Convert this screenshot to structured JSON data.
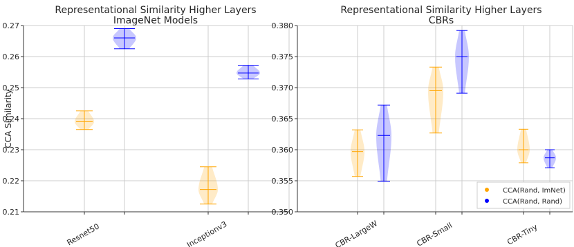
{
  "colors": {
    "rand_imnet": "#ffa500",
    "rand_rand": "#0000ff",
    "grid": "#cccccc",
    "spine": "#333333"
  },
  "chart_data": [
    {
      "type": "violin",
      "title_line1": "Representational Similarity Higher Layers",
      "title_line2": "ImageNet Models",
      "xlabel": "",
      "ylabel": "CCA Similarity",
      "ylim": [
        0.21,
        0.27
      ],
      "yticks": [
        "0.21",
        "0.22",
        "0.23",
        "0.24",
        "0.25",
        "0.26",
        "0.27"
      ],
      "grid": true,
      "categories": [
        "Resnet50",
        "Inceptionv3"
      ],
      "series": [
        {
          "name": "CCA(Rand, ImNet)",
          "color": "#ffa500",
          "values": [
            {
              "min": 0.2365,
              "median": 0.239,
              "max": 0.2425
            },
            {
              "min": 0.2125,
              "median": 0.2172,
              "max": 0.2245
            }
          ]
        },
        {
          "name": "CCA(Rand, Rand)",
          "color": "#0000ff",
          "values": [
            {
              "min": 0.2625,
              "median": 0.266,
              "max": 0.269
            },
            {
              "min": 0.2528,
              "median": 0.2547,
              "max": 0.2572
            }
          ]
        }
      ]
    },
    {
      "type": "violin",
      "title_line1": "Representational Similarity Higher Layers",
      "title_line2": "CBRs",
      "xlabel": "",
      "ylabel": "",
      "ylim": [
        0.35,
        0.38
      ],
      "yticks": [
        "0.350",
        "0.355",
        "0.360",
        "0.365",
        "0.370",
        "0.375",
        "0.380"
      ],
      "grid": true,
      "categories": [
        "CBR-LargeW",
        "CBR-Small",
        "CBR-Tiny"
      ],
      "legend_position": "lower-right",
      "series": [
        {
          "name": "CCA(Rand, ImNet)",
          "color": "#ffa500",
          "values": [
            {
              "min": 0.3557,
              "median": 0.3597,
              "max": 0.3632
            },
            {
              "min": 0.3627,
              "median": 0.3695,
              "max": 0.3733
            },
            {
              "min": 0.3579,
              "median": 0.36,
              "max": 0.3633
            }
          ]
        },
        {
          "name": "CCA(Rand, Rand)",
          "color": "#0000ff",
          "values": [
            {
              "min": 0.3549,
              "median": 0.3623,
              "max": 0.3672
            },
            {
              "min": 0.3691,
              "median": 0.375,
              "max": 0.3792
            },
            {
              "min": 0.3571,
              "median": 0.3587,
              "max": 0.36
            }
          ]
        }
      ]
    }
  ],
  "legend": {
    "items": [
      {
        "label": "CCA(Rand, ImNet)",
        "color": "#ffa500"
      },
      {
        "label": "CCA(Rand, Rand)",
        "color": "#0000ff"
      }
    ]
  }
}
